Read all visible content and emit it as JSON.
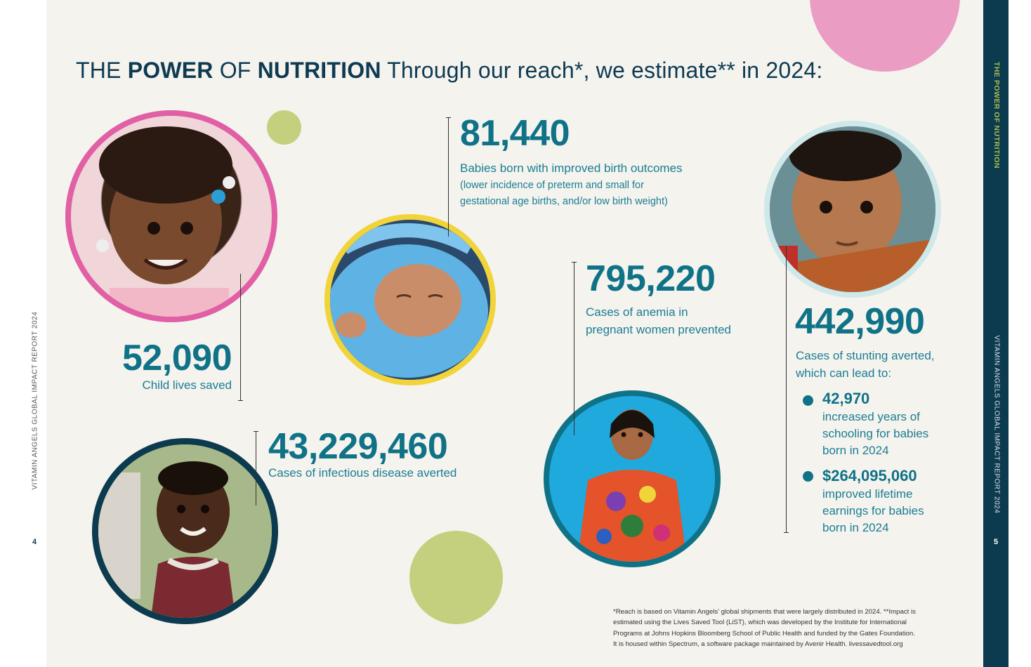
{
  "header": {
    "word1": "THE",
    "word2": "POWER",
    "word3": "OF",
    "word4": "NUTRITION",
    "rest": "Through our reach*, we estimate** in 2024:"
  },
  "sidebar": {
    "section_title": "THE POWER OF NUTRITION",
    "report_title": "VITAMIN ANGELS GLOBAL IMPACT REPORT 2024",
    "page_number": "5"
  },
  "left_margin": {
    "report_title": "VITAMIN ANGELS GLOBAL IMPACT REPORT 2024",
    "page_number": "4"
  },
  "stats": {
    "child_lives": {
      "value": "52,090",
      "label": "Child lives saved"
    },
    "births": {
      "value": "81,440",
      "label": "Babies born with improved birth outcomes",
      "note_line1": "(lower incidence of preterm and small for",
      "note_line2": "gestational age births, and/or low birth weight)"
    },
    "anemia": {
      "value": "795,220",
      "label_line1": "Cases of anemia in",
      "label_line2": "pregnant women prevented"
    },
    "stunting": {
      "value": "442,990",
      "label_line1": "Cases of stunting averted,",
      "label_line2": "which can lead to:",
      "sub": [
        {
          "value": "42,970",
          "lines": [
            "increased years of",
            "schooling for babies",
            "born in 2024"
          ]
        },
        {
          "value": "$264,095,060",
          "lines": [
            "improved lifetime",
            "earnings for babies",
            "born in 2024"
          ]
        }
      ]
    },
    "infectious": {
      "value": "43,229,460",
      "label": "Cases of infectious disease averted"
    }
  },
  "footnote": [
    "*Reach is based on Vitamin Angels’ global shipments that were largely distributed in 2024. **Impact is",
    "estimated using the Lives Saved Tool (LiST), which was developed by the Institute for International",
    "Programs at Johns Hopkins Bloomberg School of Public Health and funded by the Gates Foundation.",
    "It is housed within Spectrum, a software package maintained by Avenir Health. livessavedtool.org"
  ],
  "colors": {
    "page_bg": "#f4f3ee",
    "navy": "#0c3a4f",
    "teal": "#0f7287",
    "pink": "#e05fa5",
    "yellow": "#f1d33a",
    "lime": "#c5d07e",
    "light_pink": "#ea9cc2",
    "light_blue": "#cfe8ea",
    "accent_green": "#a9bd4b"
  },
  "photos": [
    {
      "name": "photo-girl-smiling"
    },
    {
      "name": "photo-newborn-blanket"
    },
    {
      "name": "photo-toddler-chair"
    },
    {
      "name": "photo-woman-embroidered-blouse"
    },
    {
      "name": "photo-boy-smiling"
    }
  ]
}
